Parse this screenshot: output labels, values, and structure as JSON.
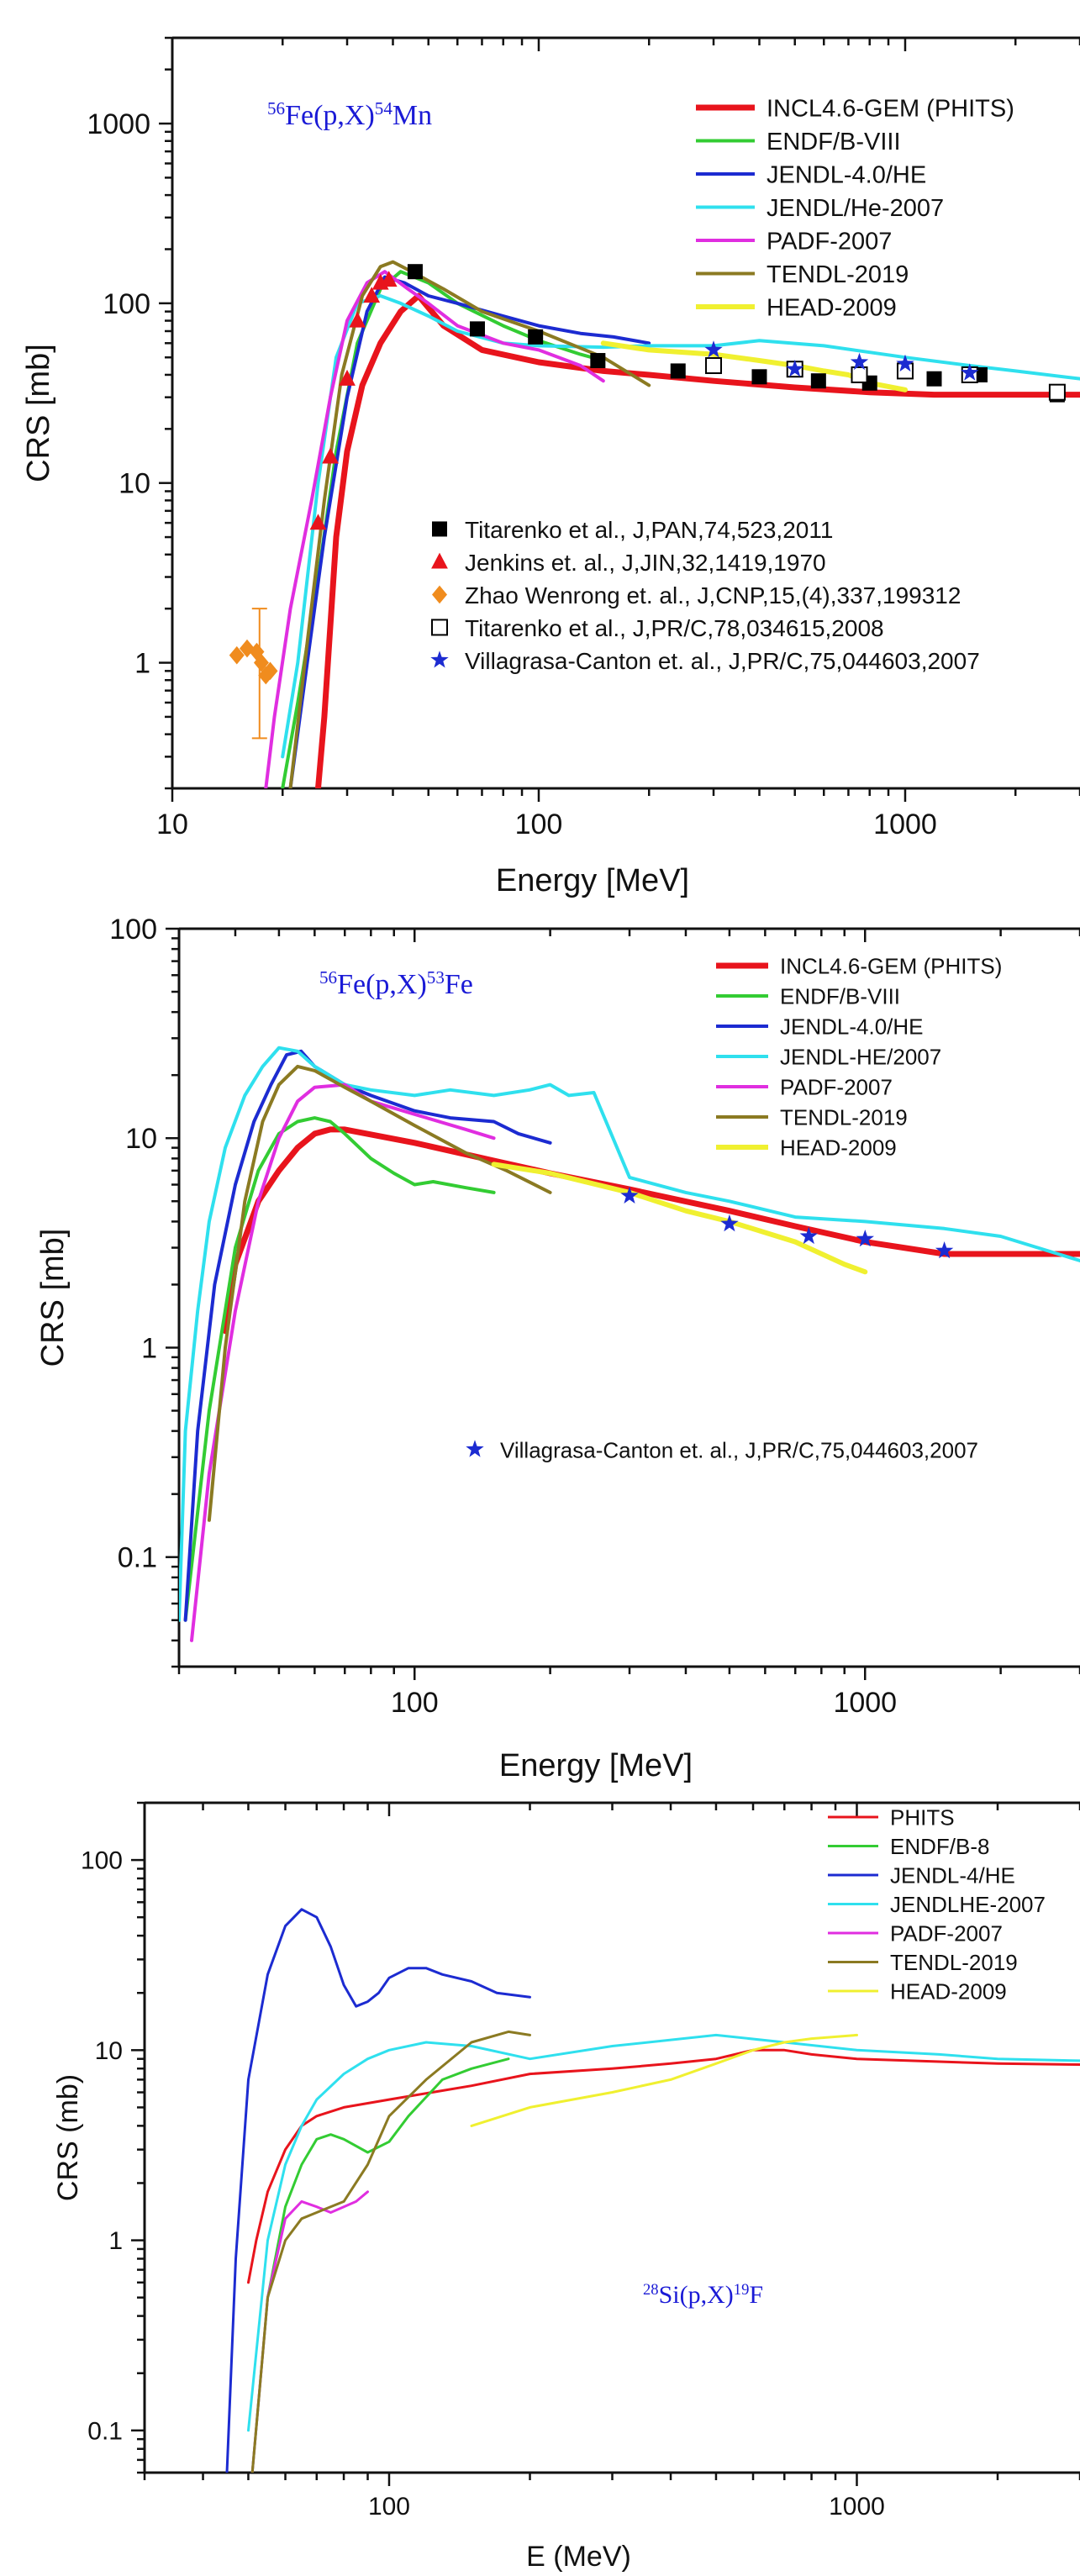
{
  "chart_data": [
    {
      "type": "line",
      "reaction": {
        "pre": "56",
        "a": "Fe(p,X)",
        "post": "54",
        "b": "Mn"
      },
      "xlabel": "Energy [MeV]",
      "ylabel": "CRS [mb]",
      "xscale": "log",
      "yscale": "log",
      "xlim": [
        10,
        3000
      ],
      "ylim": [
        0.2,
        3000
      ],
      "xticks": [
        {
          "v": 10,
          "label": "10"
        },
        {
          "v": 100,
          "label": "100"
        },
        {
          "v": 1000,
          "label": "1000"
        }
      ],
      "yticks": [
        {
          "v": 1,
          "label": "1"
        },
        {
          "v": 10,
          "label": "10"
        },
        {
          "v": 100,
          "label": "100"
        },
        {
          "v": 1000,
          "label": "1000"
        }
      ],
      "legend_position": "top-right",
      "series": [
        {
          "name": "INCL4.6-GEM (PHITS)",
          "color": "#e8141c",
          "width": 7,
          "x": [
            25,
            26,
            28,
            30,
            33,
            37,
            42,
            47,
            55,
            70,
            100,
            150,
            200,
            300,
            500,
            800,
            1200,
            2000,
            3000
          ],
          "y": [
            0.2,
            0.5,
            5,
            15,
            35,
            60,
            90,
            110,
            75,
            55,
            47,
            42,
            40,
            37,
            34,
            32,
            31,
            31,
            31
          ]
        },
        {
          "name": "ENDF/B-VIII",
          "color": "#33cc33",
          "width": 4,
          "x": [
            20,
            22,
            25,
            28,
            32,
            37,
            42,
            50,
            60,
            80,
            100,
            130,
            150
          ],
          "y": [
            0.2,
            0.6,
            3,
            15,
            60,
            120,
            150,
            130,
            100,
            75,
            62,
            52,
            48
          ]
        },
        {
          "name": "JENDL-4.0/HE",
          "color": "#1c2bd1",
          "width": 4,
          "x": [
            21,
            23,
            26,
            30,
            34,
            38,
            43,
            50,
            60,
            80,
            100,
            130,
            160,
            200
          ],
          "y": [
            0.2,
            0.8,
            5,
            30,
            90,
            140,
            130,
            110,
            100,
            85,
            75,
            68,
            65,
            60
          ]
        },
        {
          "name": "JENDL/He-2007",
          "color": "#2fe0ee",
          "width": 4,
          "x": [
            20,
            22,
            25,
            28,
            32,
            37,
            42,
            50,
            60,
            80,
            100,
            150,
            200,
            300,
            400,
            600,
            1000,
            1500,
            2000,
            3000
          ],
          "y": [
            0.3,
            1,
            10,
            50,
            100,
            110,
            100,
            85,
            70,
            60,
            58,
            57,
            58,
            58,
            62,
            58,
            50,
            45,
            42,
            38
          ]
        },
        {
          "name": "PADF-2007",
          "color": "#e02ee0",
          "width": 4,
          "x": [
            18,
            19,
            21,
            24,
            27,
            30,
            34,
            38,
            44,
            50,
            60,
            80,
            100,
            130,
            150
          ],
          "y": [
            0.2,
            0.5,
            2,
            8,
            30,
            80,
            130,
            150,
            120,
            100,
            75,
            60,
            55,
            45,
            37
          ]
        },
        {
          "name": "TENDL-2019",
          "color": "#8b7a22",
          "width": 4,
          "x": [
            21,
            23,
            26,
            29,
            33,
            37,
            40,
            45,
            55,
            70,
            100,
            150,
            200
          ],
          "y": [
            0.2,
            1,
            8,
            40,
            110,
            160,
            170,
            150,
            120,
            90,
            70,
            50,
            35
          ]
        },
        {
          "name": "HEAD-2009",
          "color": "#f0f030",
          "width": 6,
          "x": [
            150,
            200,
            300,
            400,
            500,
            600,
            700,
            800,
            1000
          ],
          "y": [
            60,
            55,
            52,
            48,
            45,
            42,
            40,
            36,
            33
          ]
        }
      ],
      "scatter": [
        {
          "name": "Titarenko et al., J,PAN,74,523,2011",
          "marker": "square-filled",
          "color": "#000000",
          "x": [
            46,
            68,
            98,
            145,
            240,
            400,
            580,
            800,
            1200,
            1600,
            2600
          ],
          "y": [
            150,
            72,
            65,
            48,
            42,
            39,
            37,
            36,
            38,
            40,
            31
          ]
        },
        {
          "name": "Jenkins et. al., J,JIN,32,1419,1970",
          "marker": "triangle",
          "color": "#e8141c",
          "x": [
            25,
            27,
            30,
            32,
            35,
            37,
            39
          ],
          "y": [
            6,
            14,
            38,
            80,
            110,
            130,
            135
          ]
        },
        {
          "name": "Zhao Wenrong et. al., J,CNP,15,(4),337,199312",
          "marker": "diamond",
          "color": "#f08c1e",
          "x": [
            15,
            16,
            17,
            17.5,
            18,
            18.5
          ],
          "y": [
            1.1,
            1.2,
            1.15,
            1.0,
            0.85,
            0.9
          ],
          "errorbar": {
            "x": 17.3,
            "y": 1.1,
            "low": 0.38,
            "high": 2.0
          }
        },
        {
          "name": "Titarenko et al., J,PR/C,78,034615,2008",
          "marker": "square-open",
          "color": "#000000",
          "x": [
            300,
            500,
            750,
            1000,
            1500,
            2600
          ],
          "y": [
            45,
            43,
            40,
            42,
            40,
            32
          ]
        },
        {
          "name": "Villagrasa-Canton et. al., J,PR/C,75,044603,2007",
          "marker": "star",
          "color": "#1c2bd1",
          "x": [
            300,
            500,
            750,
            1000,
            1500
          ],
          "y": [
            55,
            43,
            47,
            46,
            41
          ]
        }
      ]
    },
    {
      "type": "line",
      "reaction": {
        "pre": "56",
        "a": "Fe(p,X)",
        "post": "53",
        "b": "Fe"
      },
      "xlabel": "Energy [MeV]",
      "ylabel": "CRS [mb]",
      "xscale": "log",
      "yscale": "log",
      "xlim": [
        30,
        3000
      ],
      "ylim": [
        0.03,
        100
      ],
      "xticks": [
        {
          "v": 100,
          "label": "100"
        },
        {
          "v": 1000,
          "label": "1000"
        }
      ],
      "yticks": [
        {
          "v": 0.1,
          "label": "0.1"
        },
        {
          "v": 1,
          "label": "1"
        },
        {
          "v": 10,
          "label": "10"
        },
        {
          "v": 100,
          "label": "100"
        }
      ],
      "legend_position": "top-right",
      "series": [
        {
          "name": "INCL4.6-GEM (PHITS)",
          "color": "#e8141c",
          "width": 7,
          "x": [
            38,
            40,
            45,
            50,
            55,
            60,
            65,
            70,
            100,
            150,
            200,
            300,
            500,
            700,
            1000,
            1500,
            2000,
            3000
          ],
          "y": [
            1.2,
            2.5,
            5,
            7,
            9,
            10.5,
            11,
            11,
            9.5,
            7.8,
            6.8,
            5.7,
            4.5,
            3.8,
            3.2,
            2.8,
            2.8,
            2.8
          ]
        },
        {
          "name": "ENDF/B-VIII",
          "color": "#33cc33",
          "width": 4,
          "x": [
            31,
            35,
            40,
            45,
            50,
            55,
            60,
            65,
            70,
            80,
            90,
            100,
            110,
            130,
            150
          ],
          "y": [
            0.05,
            0.5,
            3,
            7,
            10.5,
            12,
            12.5,
            12,
            10.5,
            8,
            6.8,
            6,
            6.2,
            5.8,
            5.5
          ]
        },
        {
          "name": "JENDL-4.0/HE",
          "color": "#1c2bd1",
          "width": 4,
          "x": [
            31,
            33,
            36,
            40,
            44,
            48,
            52,
            56,
            60,
            70,
            80,
            100,
            120,
            150,
            170,
            200
          ],
          "y": [
            0.05,
            0.4,
            2,
            6,
            12,
            18,
            25,
            26,
            22,
            18,
            16,
            13.5,
            12.5,
            12,
            10.5,
            9.5
          ]
        },
        {
          "name": "JENDL-HE/2007",
          "color": "#2fe0ee",
          "width": 4,
          "x": [
            30,
            31,
            33,
            35,
            38,
            42,
            46,
            50,
            55,
            60,
            70,
            80,
            100,
            120,
            150,
            180,
            200,
            220,
            250,
            300,
            400,
            500,
            700,
            1000,
            1500,
            2000,
            3000
          ],
          "y": [
            0.05,
            0.4,
            1.5,
            4,
            9,
            16,
            22,
            27,
            26,
            22,
            18,
            17,
            16,
            17,
            16,
            17,
            18,
            16,
            16.5,
            6.5,
            5.5,
            5,
            4.2,
            4,
            3.7,
            3.4,
            2.6
          ]
        },
        {
          "name": "PADF-2007",
          "color": "#e02ee0",
          "width": 4,
          "x": [
            32,
            35,
            40,
            45,
            50,
            55,
            60,
            70,
            80,
            100,
            130,
            150
          ],
          "y": [
            0.04,
            0.25,
            1.5,
            5,
            10,
            15,
            17.5,
            18,
            15,
            13,
            11,
            10
          ]
        },
        {
          "name": "TENDL-2019",
          "color": "#8b7a22",
          "width": 4,
          "x": [
            35,
            38,
            42,
            46,
            50,
            55,
            60,
            70,
            80,
            100,
            130,
            160,
            200
          ],
          "y": [
            0.15,
            1,
            5,
            12,
            18,
            22,
            21,
            17.5,
            15,
            11.5,
            8.5,
            7,
            5.5
          ]
        },
        {
          "name": "HEAD-2009",
          "color": "#f0f030",
          "width": 6,
          "x": [
            150,
            200,
            300,
            400,
            500,
            700,
            900,
            1000
          ],
          "y": [
            7.5,
            6.8,
            5.5,
            4.5,
            4,
            3.2,
            2.5,
            2.3
          ]
        }
      ],
      "scatter": [
        {
          "name": "Villagrasa-Canton et. al., J,PR/C,75,044603,2007",
          "marker": "star",
          "color": "#1c2bd1",
          "x": [
            300,
            500,
            750,
            1000,
            1500
          ],
          "y": [
            5.3,
            3.9,
            3.4,
            3.3,
            2.9
          ]
        }
      ]
    },
    {
      "type": "line",
      "reaction": {
        "pre": "28",
        "a": "Si(p,X)",
        "post": "19",
        "b": "F"
      },
      "xlabel": "E (MeV)",
      "ylabel": "CRS (mb)",
      "xscale": "log",
      "yscale": "log",
      "xlim": [
        30,
        3000
      ],
      "ylim": [
        0.06,
        200
      ],
      "xticks": [
        {
          "v": 100,
          "label": "100"
        },
        {
          "v": 1000,
          "label": "1000"
        }
      ],
      "yticks": [
        {
          "v": 0.1,
          "label": "0.1"
        },
        {
          "v": 1,
          "label": "1"
        },
        {
          "v": 10,
          "label": "10"
        },
        {
          "v": 100,
          "label": "100"
        }
      ],
      "legend_position": "top-right",
      "series": [
        {
          "name": "PHITS",
          "color": "#e8141c",
          "width": 3,
          "x": [
            50,
            52,
            55,
            60,
            65,
            70,
            80,
            100,
            150,
            200,
            300,
            400,
            500,
            600,
            700,
            800,
            1000,
            1500,
            2000,
            3000
          ],
          "y": [
            0.6,
            1,
            1.8,
            3,
            4,
            4.5,
            5,
            5.5,
            6.5,
            7.5,
            8,
            8.5,
            9,
            10,
            10,
            9.5,
            9,
            8.7,
            8.5,
            8.4
          ]
        },
        {
          "name": "ENDF/B-8",
          "color": "#33cc33",
          "width": 3,
          "x": [
            51,
            55,
            60,
            65,
            70,
            75,
            80,
            90,
            100,
            110,
            130,
            150,
            180
          ],
          "y": [
            0.06,
            0.5,
            1.5,
            2.5,
            3.4,
            3.6,
            3.4,
            2.9,
            3.3,
            4.5,
            7,
            8,
            9
          ]
        },
        {
          "name": "JENDL-4/HE",
          "color": "#1c2bd1",
          "width": 3,
          "x": [
            45,
            47,
            50,
            55,
            60,
            65,
            70,
            75,
            80,
            85,
            90,
            95,
            100,
            110,
            120,
            130,
            150,
            170,
            200
          ],
          "y": [
            0.06,
            0.8,
            7,
            25,
            45,
            55,
            50,
            35,
            22,
            17,
            18,
            20,
            24,
            27,
            27,
            25,
            23,
            20,
            19
          ]
        },
        {
          "name": "JENDLHE-2007",
          "color": "#2fe0ee",
          "width": 3,
          "x": [
            50,
            55,
            60,
            65,
            70,
            80,
            90,
            100,
            120,
            150,
            200,
            300,
            500,
            700,
            1000,
            1500,
            2000,
            3000
          ],
          "y": [
            0.1,
            1,
            2.5,
            4,
            5.5,
            7.5,
            9,
            10,
            11,
            10.5,
            9,
            10.5,
            12,
            11,
            10,
            9.5,
            9,
            8.8
          ]
        },
        {
          "name": "PADF-2007",
          "color": "#e02ee0",
          "width": 3,
          "x": [
            51,
            55,
            60,
            65,
            70,
            75,
            80,
            85,
            90
          ],
          "y": [
            0.06,
            0.5,
            1.3,
            1.6,
            1.5,
            1.4,
            1.5,
            1.6,
            1.8
          ]
        },
        {
          "name": "TENDL-2019",
          "color": "#8b7a22",
          "width": 3,
          "x": [
            51,
            55,
            60,
            65,
            70,
            80,
            90,
            100,
            120,
            150,
            180,
            200
          ],
          "y": [
            0.06,
            0.5,
            1,
            1.3,
            1.4,
            1.6,
            2.5,
            4.5,
            7,
            11,
            12.5,
            12
          ]
        },
        {
          "name": "HEAD-2009",
          "color": "#f0f030",
          "width": 3,
          "x": [
            150,
            200,
            300,
            400,
            500,
            600,
            700,
            800,
            1000
          ],
          "y": [
            4,
            5,
            6,
            7,
            8.5,
            10,
            11,
            11.5,
            12
          ]
        }
      ],
      "scatter": []
    }
  ]
}
